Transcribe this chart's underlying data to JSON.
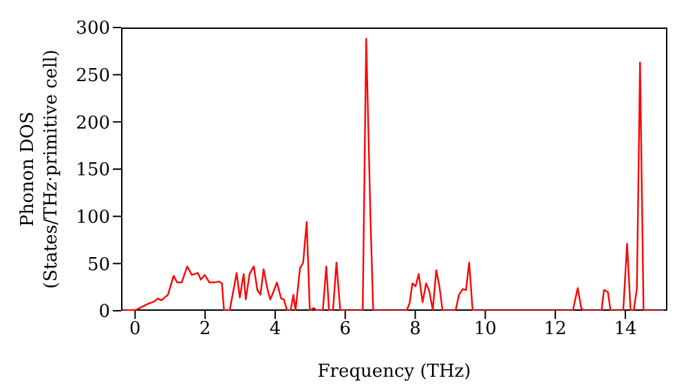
{
  "chart_data": {
    "type": "line",
    "xlabel": "Frequency (THz)",
    "ylabel": "Phonon DOS\n(States/THz·primitive cell)",
    "xlim": [
      -0.4,
      15.2
    ],
    "ylim": [
      0,
      300
    ],
    "xticks": [
      0,
      2,
      4,
      6,
      8,
      10,
      12,
      14
    ],
    "yticks": [
      0,
      50,
      100,
      150,
      200,
      250,
      300
    ],
    "marker": "none",
    "line_style": "solid",
    "x": [
      -0.37,
      0.03,
      0.35,
      0.55,
      0.65,
      0.75,
      0.94,
      1.1,
      1.2,
      1.33,
      1.49,
      1.62,
      1.79,
      1.88,
      1.99,
      2.12,
      2.27,
      2.4,
      2.48,
      2.54,
      2.7,
      2.9,
      2.99,
      3.1,
      3.16,
      3.27,
      3.39,
      3.49,
      3.58,
      3.67,
      3.78,
      3.86,
      3.95,
      4.05,
      4.17,
      4.25,
      4.34,
      4.44,
      4.52,
      4.58,
      4.71,
      4.8,
      4.9,
      4.99,
      5.1,
      5.19,
      5.36,
      5.46,
      5.54,
      5.65,
      5.75,
      5.86,
      6.5,
      6.6,
      6.72,
      6.8,
      7.75,
      7.84,
      7.92,
      8.01,
      8.1,
      8.21,
      8.31,
      8.4,
      8.5,
      8.6,
      8.69,
      8.78,
      9.15,
      9.25,
      9.36,
      9.45,
      9.54,
      9.64,
      12.5,
      12.64,
      12.74,
      12.81,
      13.32,
      13.39,
      13.5,
      13.58,
      13.94,
      14.05,
      14.15,
      14.24,
      14.33,
      14.42,
      14.52,
      15.1
    ],
    "series": [
      {
        "color": "#ff0000",
        "values": [
          0,
          1,
          7,
          10,
          13,
          11,
          17,
          37,
          30,
          30,
          47,
          38,
          40,
          33,
          38,
          30,
          30,
          31,
          29,
          0,
          0,
          40,
          14,
          39,
          12,
          39,
          47,
          22,
          17,
          44,
          23,
          12,
          20,
          30,
          13,
          12,
          0,
          0,
          17,
          0,
          45,
          51,
          94,
          0,
          3,
          0,
          0,
          47,
          0,
          0,
          51,
          0,
          0,
          288,
          100,
          0,
          0,
          8,
          29,
          26,
          39,
          9,
          29,
          21,
          1,
          43,
          26,
          0,
          0,
          17,
          23,
          22,
          51,
          0,
          0,
          24,
          3,
          0,
          0,
          22,
          20,
          0,
          0,
          71,
          0,
          0,
          24,
          263,
          0,
          0
        ]
      }
    ]
  }
}
